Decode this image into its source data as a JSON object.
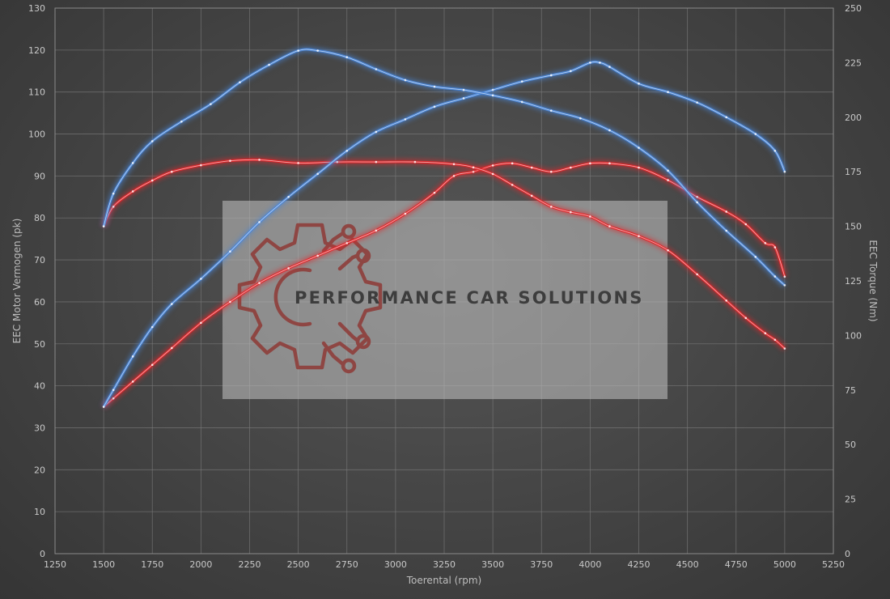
{
  "colors": {
    "stock": "#e0262a",
    "tuned": "#4a86d8",
    "grid": "#7a7a7a",
    "watermark_logo": "#8e3a36"
  },
  "watermark": {
    "text": "PERFORMANCE CAR SOLUTIONS",
    "logo_icon": "gear-circuit-icon"
  },
  "chart_data": {
    "type": "line",
    "xlabel": "Toerental (rpm)",
    "ylabel_left": "EEC Motor Vermogen (pk)",
    "ylabel_right": "EEC Torque (Nm)",
    "xlim": [
      1250,
      5250
    ],
    "ylim_left": [
      0,
      130
    ],
    "ylim_right": [
      0,
      250
    ],
    "x_ticks": [
      1250,
      1500,
      1750,
      2000,
      2250,
      2500,
      2750,
      3000,
      3250,
      3500,
      3750,
      4000,
      4250,
      4500,
      4750,
      5000,
      5250
    ],
    "y_ticks_left": [
      0,
      10,
      20,
      30,
      40,
      50,
      60,
      70,
      80,
      90,
      100,
      110,
      120,
      130
    ],
    "y_ticks_right": [
      0,
      25,
      50,
      75,
      100,
      125,
      150,
      175,
      200,
      225,
      250
    ],
    "grid": true,
    "legend": "none",
    "series": [
      {
        "axis": "left",
        "color": "stock",
        "x": [
          1500,
          1550,
          1650,
          1750,
          1850,
          2000,
          2150,
          2300,
          2450,
          2600,
          2750,
          2900,
          3050,
          3200,
          3300,
          3400,
          3500,
          3600,
          3700,
          3800,
          3900,
          4000,
          4100,
          4250,
          4400,
          4550,
          4700,
          4800,
          4900,
          4950,
          5000
        ],
        "y": [
          35,
          37,
          41,
          45,
          49,
          55,
          60,
          64.5,
          68,
          71,
          74,
          77,
          81,
          86,
          90,
          91,
          92.5,
          93,
          92,
          91,
          92,
          93,
          93,
          92,
          89,
          85,
          81.5,
          78.5,
          74,
          73,
          66
        ]
      },
      {
        "axis": "right",
        "color": "stock",
        "x": [
          1500,
          1550,
          1650,
          1750,
          1850,
          2000,
          2150,
          2300,
          2500,
          2700,
          2900,
          3100,
          3300,
          3400,
          3500,
          3600,
          3700,
          3800,
          3900,
          4000,
          4100,
          4250,
          4400,
          4550,
          4700,
          4800,
          4900,
          4950,
          5000
        ],
        "y": [
          150,
          159,
          166,
          171,
          175,
          178,
          180,
          180.5,
          179,
          179.5,
          179.5,
          179.5,
          178.5,
          177,
          174,
          169,
          164,
          159,
          156.5,
          154.5,
          150,
          145.5,
          139,
          128,
          116,
          108,
          101,
          98,
          94
        ]
      },
      {
        "axis": "left",
        "color": "tuned",
        "x": [
          1500,
          1550,
          1650,
          1750,
          1850,
          2000,
          2150,
          2300,
          2450,
          2600,
          2750,
          2900,
          3050,
          3200,
          3350,
          3500,
          3650,
          3800,
          3900,
          4000,
          4050,
          4100,
          4250,
          4400,
          4550,
          4700,
          4850,
          4950,
          5000
        ],
        "y": [
          35,
          39,
          47,
          54,
          59.5,
          65.5,
          72,
          79,
          85,
          90.5,
          96,
          100.5,
          103.5,
          106.5,
          108.5,
          110.5,
          112.5,
          114,
          115,
          117,
          117,
          116,
          112,
          110,
          107.5,
          104,
          100,
          96,
          91
        ]
      },
      {
        "axis": "right",
        "color": "tuned",
        "x": [
          1500,
          1550,
          1650,
          1750,
          1900,
          2050,
          2200,
          2350,
          2500,
          2600,
          2750,
          2900,
          3050,
          3200,
          3350,
          3500,
          3650,
          3800,
          3950,
          4100,
          4250,
          4400,
          4550,
          4700,
          4850,
          4950,
          5000
        ],
        "y": [
          150,
          165,
          179,
          189,
          198,
          206,
          216,
          224,
          230.5,
          230.5,
          227.5,
          222,
          217,
          214,
          212.5,
          210,
          207,
          203,
          199.5,
          194,
          186,
          175.5,
          161,
          148,
          136,
          127,
          123
        ]
      }
    ]
  }
}
